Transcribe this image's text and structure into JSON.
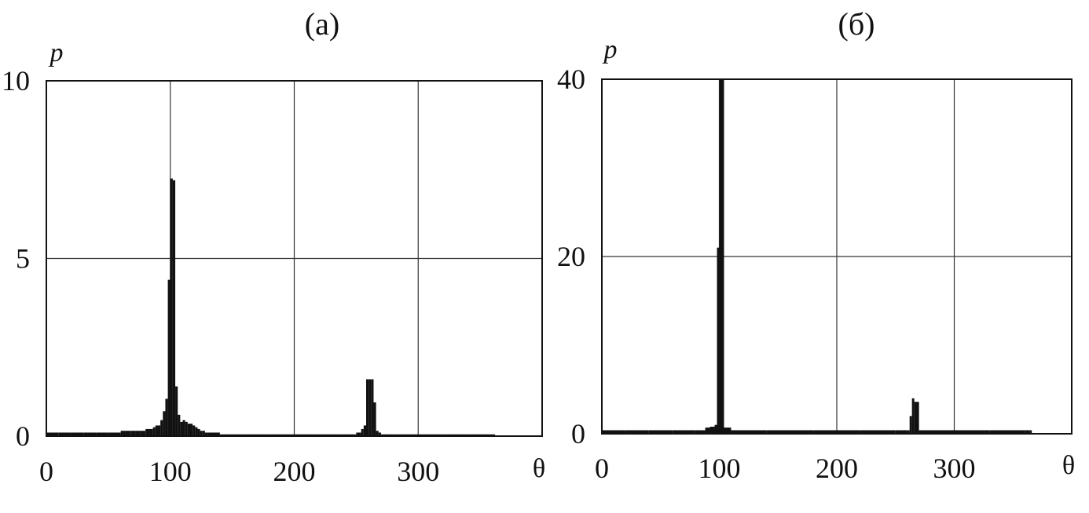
{
  "chart_data": [
    {
      "type": "bar",
      "title": "(a)",
      "xlabel": "θ",
      "ylabel": "p",
      "xlim": [
        0,
        400
      ],
      "ylim": [
        0,
        10
      ],
      "xticks": [
        0,
        100,
        200,
        300
      ],
      "yticks": [
        0,
        5,
        10
      ],
      "tick_labels_x": [
        "0",
        "100",
        "200",
        "300"
      ],
      "tick_labels_y": [
        "0",
        "5",
        "10"
      ],
      "grid": true,
      "bar_width": 2,
      "x": [
        0,
        10,
        20,
        30,
        40,
        50,
        60,
        64,
        68,
        72,
        76,
        80,
        84,
        86,
        88,
        90,
        92,
        94,
        96,
        98,
        100,
        102,
        104,
        106,
        108,
        110,
        112,
        114,
        116,
        118,
        120,
        122,
        124,
        126,
        128,
        130,
        140,
        160,
        180,
        200,
        220,
        240,
        250,
        254,
        256,
        258,
        260,
        262,
        264,
        266,
        268,
        270,
        280,
        300,
        320,
        340,
        360
      ],
      "values": [
        0.1,
        0.1,
        0.1,
        0.1,
        0.1,
        0.1,
        0.15,
        0.15,
        0.15,
        0.15,
        0.15,
        0.2,
        0.2,
        0.25,
        0.3,
        0.3,
        0.45,
        0.7,
        1.05,
        4.4,
        7.25,
        7.2,
        1.4,
        0.6,
        0.4,
        0.45,
        0.4,
        0.35,
        0.35,
        0.3,
        0.25,
        0.2,
        0.15,
        0.15,
        0.1,
        0.1,
        0.05,
        0.05,
        0.05,
        0.05,
        0.05,
        0.05,
        0.1,
        0.2,
        0.3,
        1.6,
        1.6,
        1.6,
        0.95,
        0.15,
        0.1,
        0.05,
        0.05,
        0.05,
        0.05,
        0.05,
        0.05
      ]
    },
    {
      "type": "bar",
      "title": "(б)",
      "xlabel": "θ",
      "ylabel": "p",
      "xlim": [
        0,
        400
      ],
      "ylim": [
        0,
        40
      ],
      "xticks": [
        0,
        100,
        200,
        300
      ],
      "yticks": [
        0,
        20,
        40
      ],
      "tick_labels_x": [
        "0",
        "100",
        "200",
        "300"
      ],
      "tick_labels_y": [
        "0",
        "20",
        "40"
      ],
      "grid": true,
      "bar_width": 2,
      "x": [
        0,
        20,
        40,
        60,
        80,
        88,
        92,
        96,
        98,
        100,
        102,
        104,
        110,
        140,
        180,
        220,
        250,
        260,
        262,
        264,
        266,
        270,
        300,
        330,
        360,
        364
      ],
      "values": [
        0.4,
        0.4,
        0.4,
        0.4,
        0.4,
        0.7,
        0.8,
        1.0,
        21,
        40,
        40,
        0.7,
        0.4,
        0.4,
        0.4,
        0.4,
        0.4,
        0.4,
        2.0,
        4.0,
        3.6,
        0.4,
        0.4,
        0.4,
        0.4,
        0.4
      ]
    }
  ]
}
